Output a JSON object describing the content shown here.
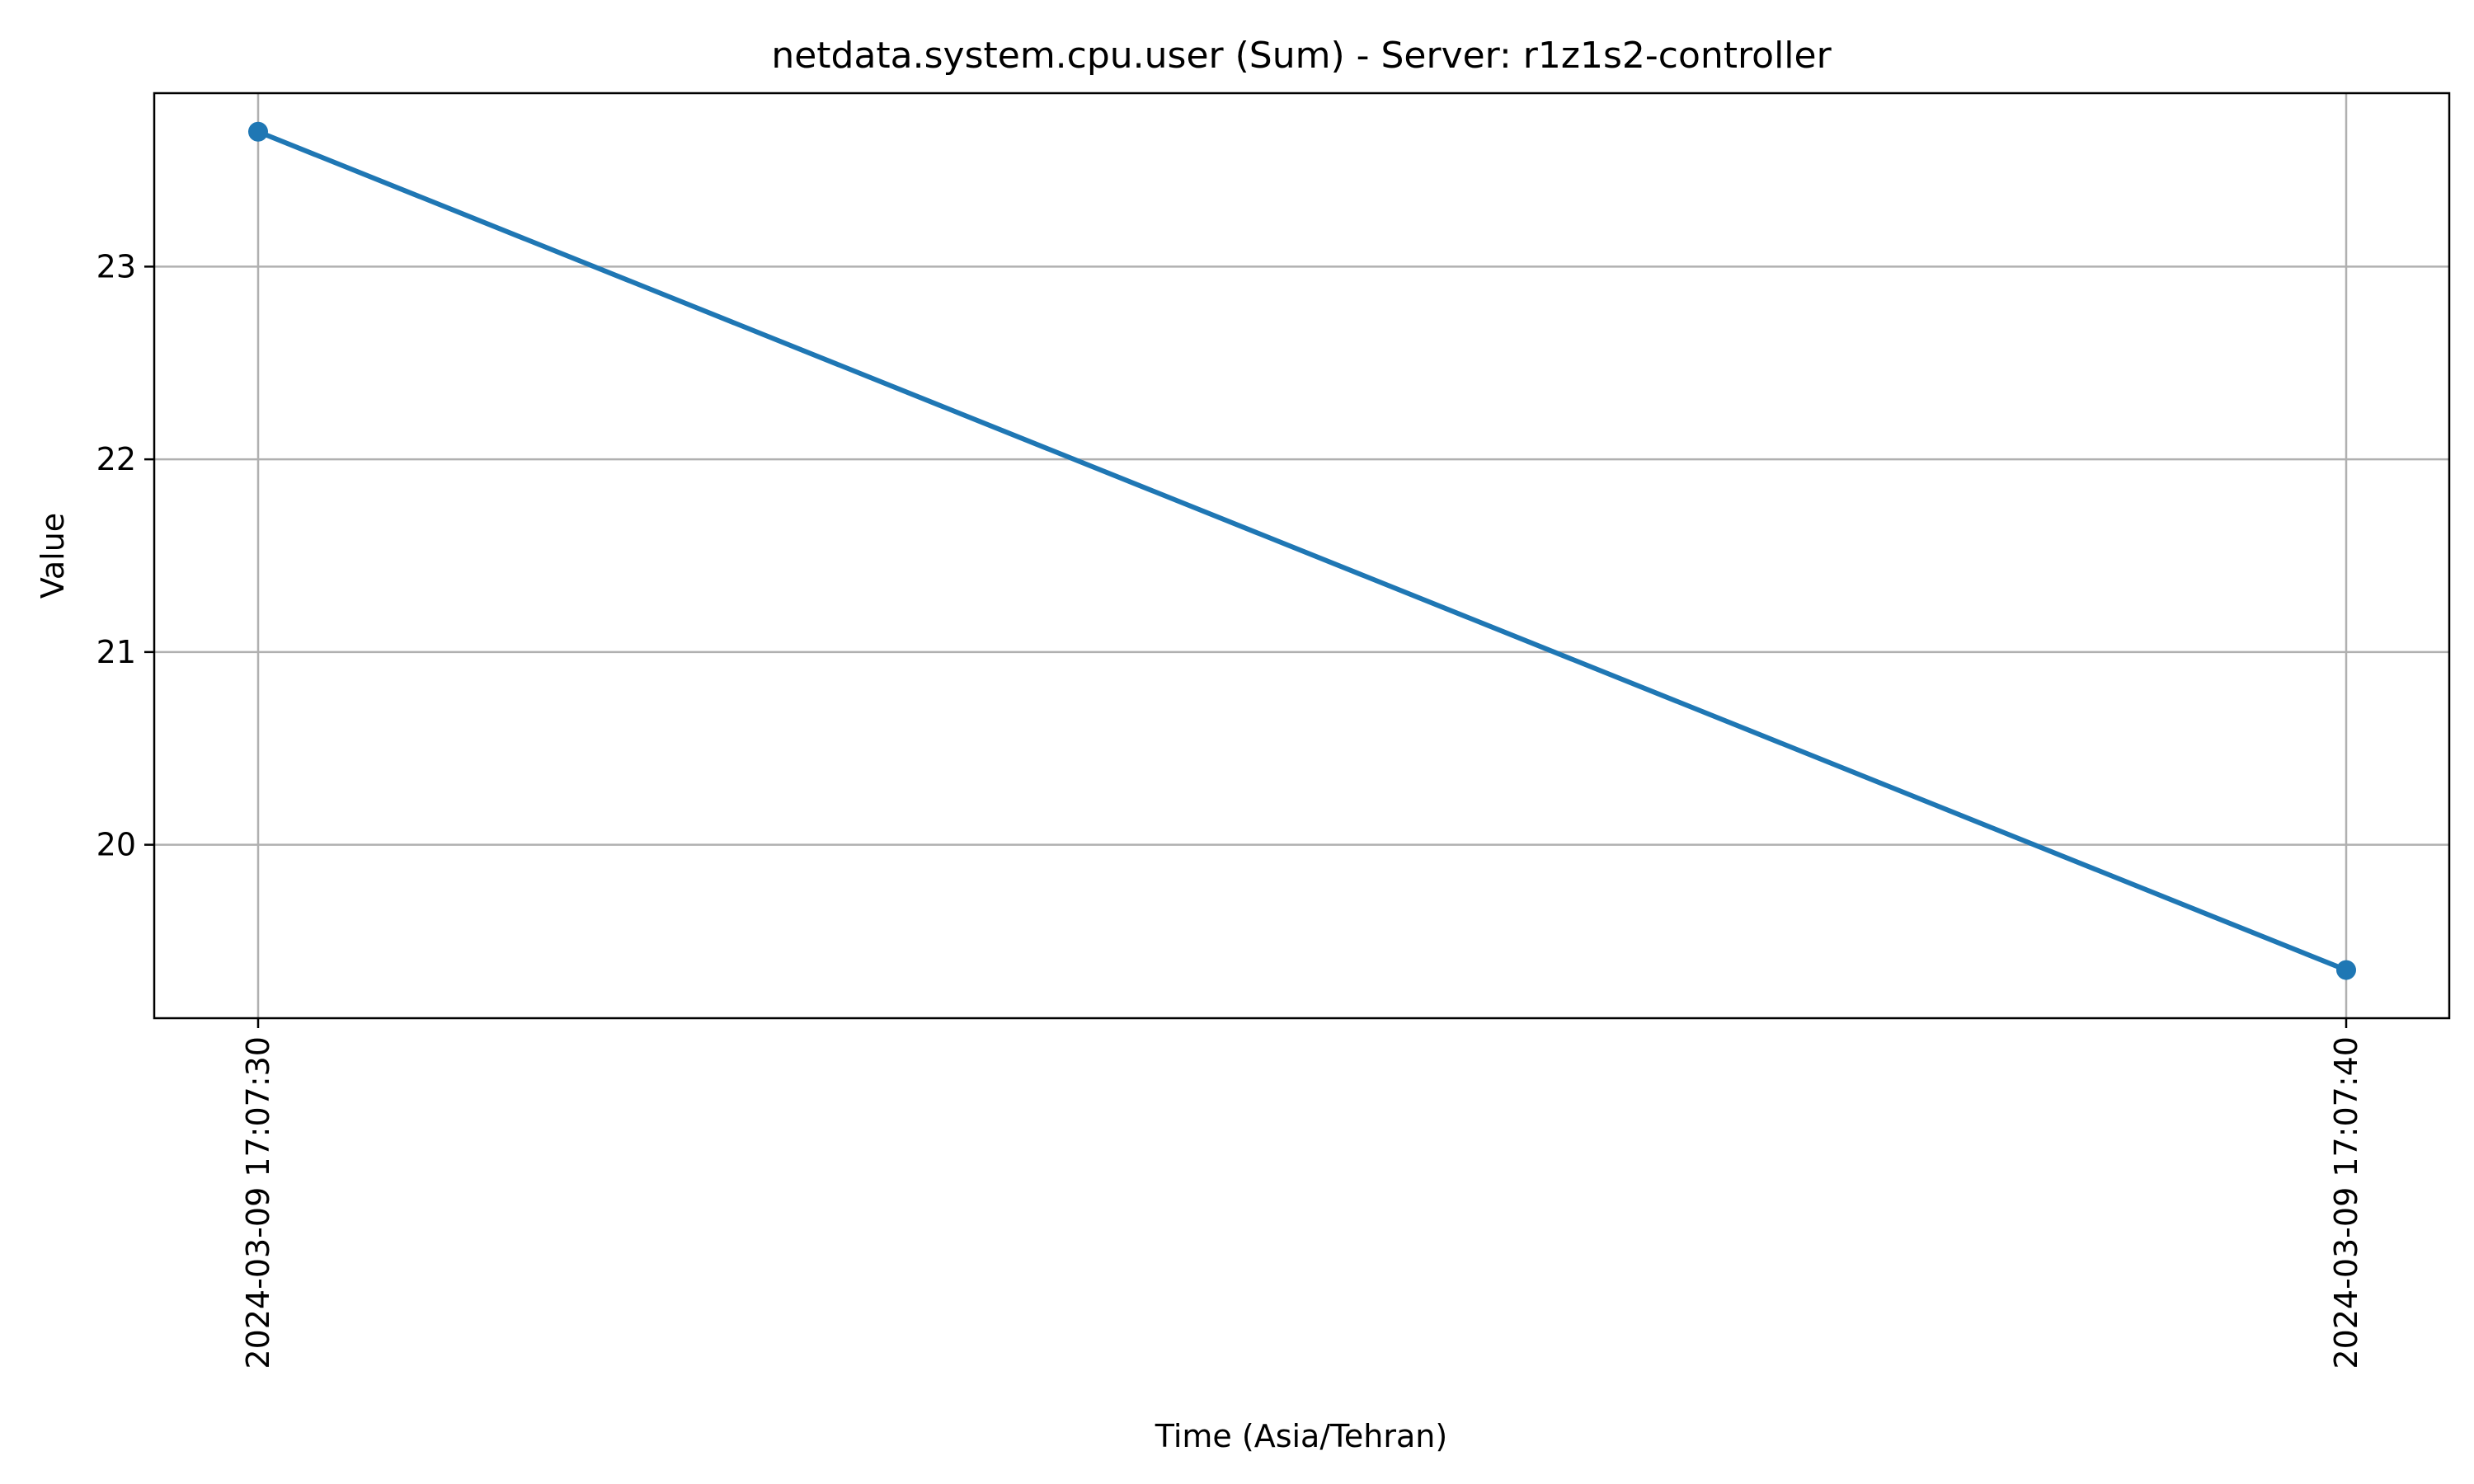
{
  "chart_data": {
    "type": "line",
    "title": "netdata.system.cpu.user (Sum) - Server: r1z1s2-controller",
    "xlabel": "Time (Asia/Tehran)",
    "ylabel": "Value",
    "x": [
      "2024-03-09 17:07:30",
      "2024-03-09 17:07:40"
    ],
    "series": [
      {
        "values": [
          23.7,
          19.35
        ],
        "color": "#1f77b4"
      }
    ],
    "yticks": [
      20,
      21,
      22,
      23
    ],
    "ylim": [
      19.1,
      23.9
    ],
    "grid": true,
    "legend": false
  }
}
